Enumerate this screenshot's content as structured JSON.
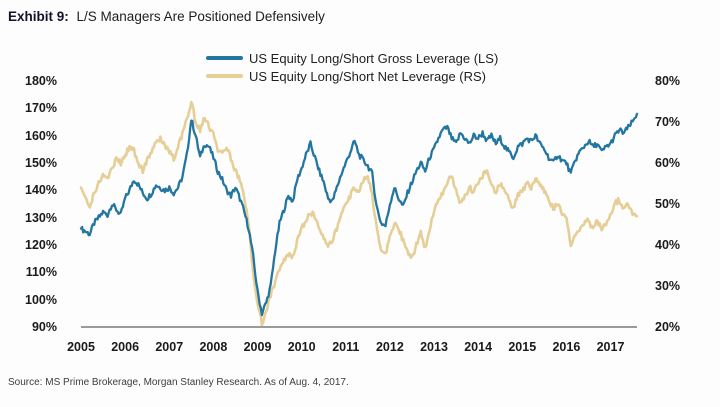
{
  "exhibit": {
    "label": "Exhibit 9:",
    "title": "L/S Managers Are Positioned Defensively"
  },
  "source": "Source: MS Prime Brokerage, Morgan Stanley Research. As of Aug. 4, 2017.",
  "colors": {
    "gross_line": "#2376a0",
    "net_line": "#e6cf97",
    "axis_line": "#5f5f5f",
    "tick_text": "#1a1a1a"
  },
  "chart_data": {
    "type": "line",
    "x_start": 2005.0,
    "x_step": 0.1,
    "x_tick_labels": [
      "2005",
      "2006",
      "2007",
      "2008",
      "2009",
      "2010",
      "2011",
      "2012",
      "2013",
      "2014",
      "2015",
      "2016",
      "2017"
    ],
    "left_axis": {
      "min": 90,
      "max": 180,
      "step": 10,
      "labels": [
        "180%",
        "170%",
        "160%",
        "150%",
        "140%",
        "130%",
        "120%",
        "110%",
        "100%",
        "90%"
      ]
    },
    "right_axis": {
      "min": 20,
      "max": 80,
      "step": 10,
      "labels": [
        "80%",
        "70%",
        "60%",
        "50%",
        "40%",
        "30%",
        "20%"
      ]
    },
    "legend_position": "top",
    "grid": false,
    "series": [
      {
        "name": "US Equity Long/Short Gross Leverage (LS)",
        "axis": "left",
        "color": "#2376a0",
        "values": [
          126,
          125,
          124,
          128,
          130,
          132,
          131,
          135,
          133,
          131,
          137,
          140,
          144,
          142,
          139,
          137,
          139,
          142,
          141,
          140,
          141,
          139,
          141,
          145,
          153,
          166,
          160,
          152,
          157,
          156,
          152,
          147,
          144,
          140,
          138,
          141,
          137,
          132,
          126,
          116,
          103,
          95,
          99,
          105,
          118,
          128,
          133,
          138,
          136,
          144,
          148,
          153,
          157,
          152,
          147,
          143,
          137,
          136,
          141,
          146,
          150,
          154,
          158,
          153,
          151,
          149,
          146,
          134,
          128,
          127,
          135,
          141,
          137,
          134,
          139,
          143,
          147,
          150,
          147,
          152,
          155,
          159,
          162,
          163,
          159,
          157,
          161,
          159,
          157,
          160,
          159,
          161,
          158,
          160,
          157,
          159,
          156,
          154,
          152,
          156,
          157,
          159,
          158,
          160,
          157,
          155,
          152,
          150,
          153,
          151,
          150,
          146,
          151,
          154,
          156,
          158,
          156,
          157,
          154,
          156,
          157,
          160,
          162,
          161,
          163,
          165,
          168
        ]
      },
      {
        "name": "US Equity Long/Short Net Leverage (RS)",
        "axis": "right",
        "color": "#e6cf97",
        "values": [
          54,
          51,
          49,
          53,
          55,
          57,
          56,
          59,
          61,
          60,
          62,
          64,
          63,
          60,
          58,
          61,
          63,
          65,
          66,
          64,
          63,
          61,
          64,
          67,
          71,
          75,
          70,
          68,
          71,
          69,
          67,
          63,
          62,
          64,
          61,
          58,
          56,
          52,
          45,
          33,
          26,
          21,
          24,
          28,
          31,
          34,
          36,
          38,
          37,
          41,
          44,
          46,
          48,
          47,
          44,
          42,
          40,
          41,
          44,
          47,
          50,
          52,
          54,
          53,
          56,
          57,
          52,
          44,
          39,
          38,
          42,
          45,
          44,
          41,
          38,
          37,
          40,
          43,
          39,
          44,
          48,
          51,
          53,
          55,
          57,
          53,
          50,
          52,
          54,
          53,
          55,
          57,
          58,
          55,
          53,
          55,
          54,
          51,
          49,
          52,
          53,
          55,
          54,
          56,
          55,
          53,
          51,
          49,
          50,
          48,
          46,
          40,
          43,
          44,
          45,
          46,
          44,
          46,
          44,
          45,
          47,
          50,
          51,
          49,
          50,
          48,
          47
        ]
      }
    ]
  }
}
